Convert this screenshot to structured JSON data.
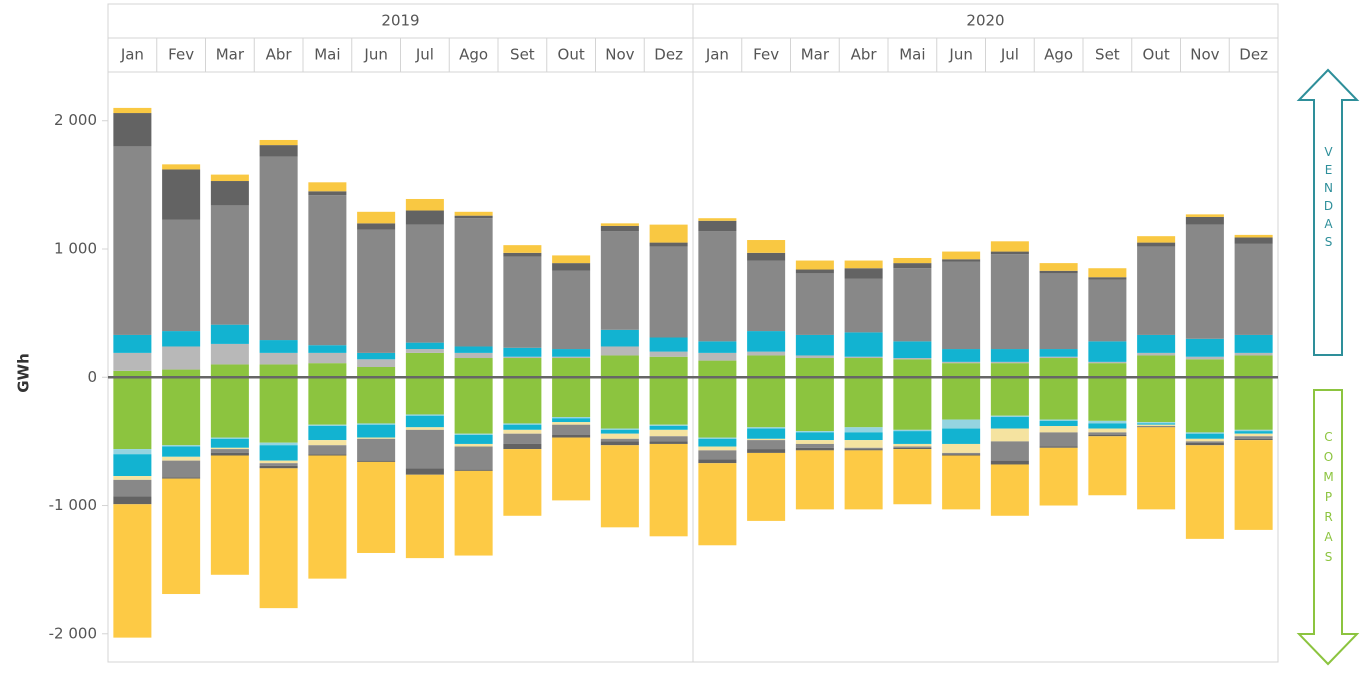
{
  "chart_data": {
    "type": "stacked_bar",
    "y_label": "GWh",
    "year_labels": [
      "2019",
      "2020"
    ],
    "categories": [
      "Jan",
      "Fev",
      "Mar",
      "Abr",
      "Mai",
      "Jun",
      "Jul",
      "Ago",
      "Set",
      "Out",
      "Nov",
      "Dez",
      "Jan",
      "Fev",
      "Mar",
      "Abr",
      "Mai",
      "Jun",
      "Jul",
      "Ago",
      "Set",
      "Out",
      "Nov",
      "Dez"
    ],
    "side_labels": [
      "VENDAS",
      "COMPRAS"
    ],
    "ylim": [
      -2220,
      2380
    ],
    "yticks": [
      {
        "value": 2000,
        "label": "2 000"
      },
      {
        "value": 1000,
        "label": "1 000"
      },
      0,
      {
        "value": -1000,
        "label": "-1 000"
      },
      {
        "value": -2000,
        "label": "-2 000"
      }
    ],
    "series": [
      {
        "color": "#8cc43f",
        "values": [
          50,
          60,
          100,
          100,
          110,
          80,
          190,
          150,
          150,
          150,
          170,
          160,
          130,
          170,
          150,
          150,
          140,
          110,
          110,
          150,
          110,
          170,
          140,
          170
        ]
      },
      {
        "color": "#b8b8b8",
        "values": [
          140,
          180,
          160,
          90,
          80,
          60,
          30,
          40,
          10,
          10,
          70,
          40,
          60,
          30,
          20,
          10,
          10,
          10,
          10,
          10,
          10,
          20,
          20,
          20
        ]
      },
      {
        "color": "#12b3d1",
        "values": [
          140,
          120,
          150,
          100,
          60,
          50,
          50,
          50,
          70,
          60,
          130,
          110,
          90,
          160,
          160,
          190,
          130,
          100,
          100,
          60,
          160,
          140,
          140,
          140
        ]
      },
      {
        "color": "#888888",
        "values": [
          1470,
          870,
          930,
          1430,
          1170,
          960,
          920,
          1000,
          710,
          610,
          770,
          710,
          860,
          550,
          480,
          420,
          570,
          680,
          740,
          590,
          480,
          690,
          890,
          710
        ]
      },
      {
        "color": "#636363",
        "values": [
          260,
          390,
          190,
          90,
          30,
          50,
          110,
          20,
          30,
          60,
          40,
          30,
          80,
          60,
          30,
          80,
          40,
          20,
          20,
          20,
          20,
          30,
          60,
          50
        ]
      },
      {
        "color": "#f9c842",
        "values": [
          40,
          40,
          50,
          40,
          70,
          90,
          90,
          30,
          60,
          60,
          20,
          140,
          20,
          100,
          70,
          60,
          40,
          60,
          80,
          60,
          70,
          50,
          20,
          20
        ]
      },
      {
        "color": "#8cc43f",
        "values": [
          -560,
          -530,
          -470,
          -510,
          -370,
          -360,
          -290,
          -440,
          -360,
          -310,
          -400,
          -370,
          -470,
          -390,
          -420,
          -390,
          -410,
          -330,
          -300,
          -330,
          -340,
          -350,
          -430,
          -410
        ]
      },
      {
        "color": "#94d4e0",
        "values": [
          -40,
          -10,
          -10,
          -20,
          -10,
          -10,
          -10,
          -10,
          -10,
          -10,
          -10,
          -10,
          -10,
          -10,
          -10,
          -40,
          -10,
          -70,
          -10,
          -10,
          -20,
          -10,
          -10,
          -10
        ]
      },
      {
        "color": "#12b3d1",
        "values": [
          -170,
          -80,
          -70,
          -120,
          -110,
          -100,
          -90,
          -70,
          -40,
          -30,
          -30,
          -30,
          -60,
          -80,
          -60,
          -60,
          -100,
          -120,
          -90,
          -40,
          -40,
          -10,
          -40,
          -20
        ]
      },
      {
        "color": "#f5e3a0",
        "values": [
          -30,
          -30,
          -10,
          -20,
          -40,
          -10,
          -20,
          -20,
          -30,
          -20,
          -40,
          -50,
          -30,
          -10,
          -30,
          -60,
          -20,
          -70,
          -100,
          -50,
          -30,
          -10,
          -20,
          -20
        ]
      },
      {
        "color": "#888888",
        "values": [
          -130,
          -130,
          -30,
          -20,
          -70,
          -170,
          -300,
          -180,
          -80,
          -80,
          -20,
          -40,
          -70,
          -70,
          -30,
          -10,
          -10,
          -10,
          -150,
          -110,
          -20,
          -5,
          -10,
          -20
        ]
      },
      {
        "color": "#636363",
        "values": [
          -60,
          -10,
          -20,
          -20,
          -10,
          -10,
          -50,
          -10,
          -40,
          -20,
          -30,
          -20,
          -30,
          -30,
          -20,
          -10,
          -10,
          -10,
          -30,
          -10,
          -10,
          -5,
          -20,
          -10
        ]
      },
      {
        "color": "#fdca45",
        "values": [
          -1040,
          -900,
          -930,
          -1090,
          -960,
          -710,
          -650,
          -660,
          -520,
          -490,
          -640,
          -720,
          -640,
          -530,
          -460,
          -460,
          -430,
          -420,
          -400,
          -450,
          -460,
          -640,
          -730,
          -700
        ]
      }
    ]
  }
}
